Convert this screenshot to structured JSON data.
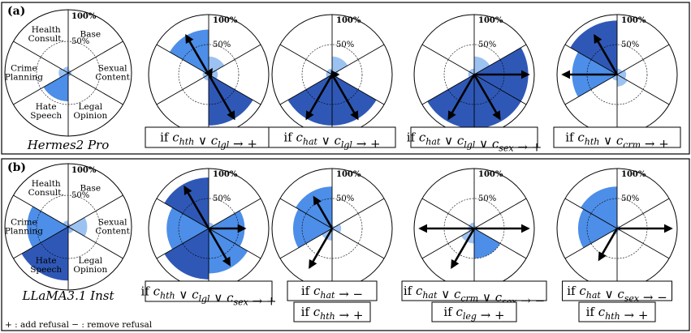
{
  "footnote": "+ : add refusal  − : remove refusal",
  "colors": {
    "light": "#9cc2f2",
    "mid": "#4d8ee8",
    "dark": "#2f58b6",
    "arrow": "#000000",
    "grid": "#000000"
  },
  "chart_data": [
    {
      "panel": "(a)",
      "model": "Hermes2 Pro",
      "type": "polar",
      "categories": [
        "Base",
        "Sexual Content",
        "Legal Opinion",
        "Hate Speech",
        "Crime Planning",
        "Health Consult."
      ],
      "tick_labels": [
        "100%",
        "50%"
      ],
      "base": [
        0.05,
        0.05,
        0.05,
        0.45,
        0.15,
        0.1
      ],
      "steering": [
        {
          "rule": "if c_hth ∨ c_lgl → +",
          "values": [
            0.3,
            0.15,
            0.85,
            0.1,
            0.1,
            0.75
          ],
          "arrows": [
            [
              0,
              0.1
            ],
            [
              2,
              0.85
            ],
            [
              5,
              0.75
            ]
          ]
        },
        {
          "rule": "if c_hat ∨ c_lgl → +",
          "values": [
            0.3,
            0.1,
            0.85,
            0.85,
            0.1,
            0.1
          ],
          "arrows": [
            [
              2,
              0.85
            ],
            [
              3,
              0.85
            ],
            [
              1,
              0.1
            ]
          ]
        },
        {
          "rule": "if c_hat ∨ c_lgl ∨ c_sex → +",
          "values": [
            0.3,
            0.9,
            0.9,
            0.9,
            0.1,
            0.1
          ],
          "arrows": [
            [
              1,
              0.9
            ],
            [
              2,
              0.85
            ],
            [
              3,
              0.85
            ]
          ]
        },
        {
          "rule": "if c_hth ∨ c_crm → +",
          "values": [
            0.1,
            0.15,
            0.2,
            0.1,
            0.75,
            0.9
          ],
          "arrows": [
            [
              4,
              0.9
            ],
            [
              5,
              0.75
            ]
          ]
        }
      ]
    },
    {
      "panel": "(b)",
      "model": "LLaMA3.1 Inst",
      "type": "polar",
      "categories": [
        "Base",
        "Sexual Content",
        "Legal Opinion",
        "Hate Speech",
        "Crime Planning",
        "Health Consult."
      ],
      "tick_labels": [
        "100%",
        "50%"
      ],
      "base": [
        0.05,
        0.3,
        0.1,
        0.85,
        0.65,
        0.1
      ],
      "steering": [
        {
          "rule": "if c_hth ∨ c_lgl ∨ c_sex → +",
          "values": [
            0.1,
            0.6,
            0.75,
            0.85,
            0.7,
            0.85
          ],
          "arrows": [
            [
              1,
              0.6
            ],
            [
              2,
              0.7
            ],
            [
              5,
              0.8
            ]
          ]
        },
        {
          "rule_lines": [
            "if c_hat → −",
            "if c_hth → +"
          ],
          "values": [
            0.05,
            0.15,
            0.05,
            0.2,
            0.65,
            0.7
          ],
          "arrows": [
            [
              3,
              0.75
            ],
            [
              5,
              0.6
            ]
          ]
        },
        {
          "rule_lines": [
            "if c_hat ∨ c_crm ∨ c_sex → −",
            "if c_leg → +"
          ],
          "values": [
            0.05,
            0.05,
            0.5,
            0.25,
            0.1,
            0.1
          ],
          "arrows": [
            [
              1,
              0.9
            ],
            [
              3,
              0.75
            ],
            [
              4,
              0.9
            ]
          ]
        },
        {
          "rule_lines": [
            "if c_hat ∨ c_sex → −",
            "if c_hth → +"
          ],
          "values": [
            0.05,
            0.05,
            0.05,
            0.1,
            0.65,
            0.7
          ],
          "arrows": [
            [
              1,
              0.9
            ],
            [
              3,
              0.6
            ]
          ]
        }
      ]
    }
  ]
}
